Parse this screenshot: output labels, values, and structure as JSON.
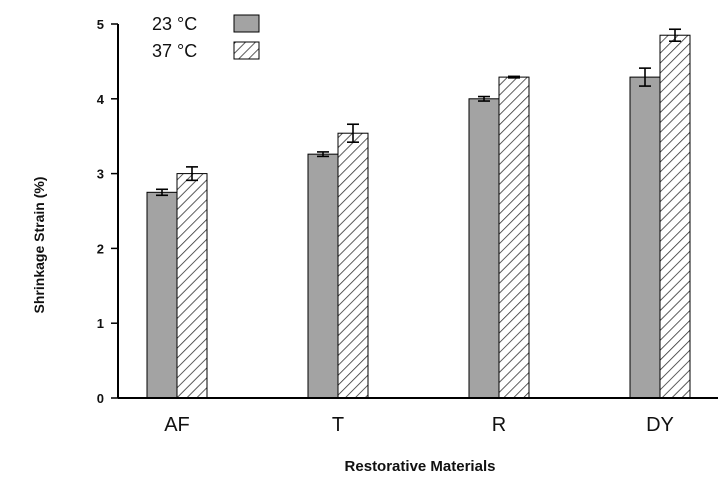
{
  "chart_data": {
    "type": "bar",
    "title": "",
    "xlabel": "Restorative Materials",
    "ylabel": "Shrinkage Strain (%)",
    "ylim": [
      0,
      5
    ],
    "yticks": [
      "0",
      "1",
      "2",
      "3",
      "4",
      "5"
    ],
    "categories": [
      "AF",
      "T",
      "R",
      "DY"
    ],
    "series": [
      {
        "name": "23 °C",
        "fill": "solid",
        "color": "#a3a3a3",
        "values": [
          2.75,
          3.26,
          4.0,
          4.29
        ],
        "errors": [
          0.04,
          0.03,
          0.03,
          0.12
        ]
      },
      {
        "name": "37 °C",
        "fill": "hatched",
        "color": "#ffffff",
        "values": [
          3.0,
          3.54,
          4.29,
          4.85
        ],
        "errors": [
          0.09,
          0.12,
          0.01,
          0.08
        ]
      }
    ],
    "legend": "top-left",
    "grid": false
  }
}
